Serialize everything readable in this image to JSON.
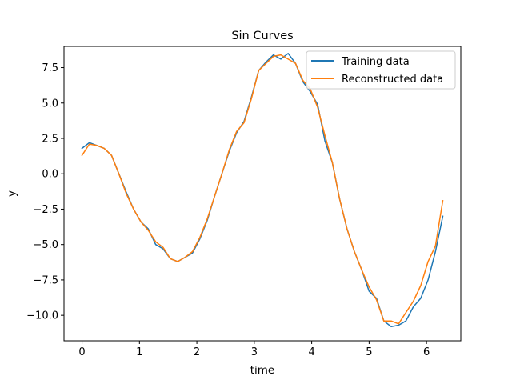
{
  "chart_data": {
    "type": "line",
    "title": "Sin Curves",
    "xlabel": "time",
    "ylabel": "y",
    "xlim": [
      -0.3142,
      6.5973
    ],
    "ylim": [
      -11.8,
      9.0
    ],
    "xticks": [
      0,
      1,
      2,
      3,
      4,
      5,
      6
    ],
    "xtick_labels": [
      "0",
      "1",
      "2",
      "3",
      "4",
      "5",
      "6"
    ],
    "yticks": [
      -10.0,
      -7.5,
      -5.0,
      -2.5,
      0.0,
      2.5,
      5.0,
      7.5
    ],
    "ytick_labels": [
      "−10.0",
      "−7.5",
      "−5.0",
      "−2.5",
      "0.0",
      "2.5",
      "5.0",
      "7.5"
    ],
    "grid": false,
    "legend_position": "top-right",
    "x": [
      0.0,
      0.1282,
      0.2565,
      0.3847,
      0.5129,
      0.6411,
      0.7694,
      0.8976,
      1.0258,
      1.1541,
      1.2823,
      1.4105,
      1.5387,
      1.667,
      1.7952,
      1.9234,
      2.0517,
      2.1799,
      2.3081,
      2.4363,
      2.5646,
      2.6928,
      2.821,
      2.9493,
      3.0775,
      3.2057,
      3.3339,
      3.4622,
      3.5904,
      3.7186,
      3.8468,
      3.9751,
      4.1033,
      4.2315,
      4.3598,
      4.488,
      4.6162,
      4.7444,
      4.8727,
      5.0009,
      5.1291,
      5.2574,
      5.3856,
      5.5138,
      5.642,
      5.7703,
      5.8985,
      6.0267,
      6.155,
      6.2832
    ],
    "series": [
      {
        "name": "Training data",
        "color": "#1f77b4",
        "values": [
          1.8,
          2.2,
          2.0,
          1.8,
          1.3,
          0.0,
          -1.3,
          -2.5,
          -3.4,
          -3.9,
          -5.0,
          -5.3,
          -6.0,
          -6.2,
          -5.9,
          -5.6,
          -4.6,
          -3.3,
          -1.6,
          0.0,
          1.6,
          2.9,
          3.7,
          5.4,
          7.3,
          7.9,
          8.4,
          8.1,
          8.5,
          7.8,
          6.5,
          5.8,
          4.9,
          2.3,
          0.8,
          -1.8,
          -3.9,
          -5.5,
          -6.8,
          -8.3,
          -8.8,
          -10.4,
          -10.8,
          -10.7,
          -10.4,
          -9.4,
          -8.8,
          -7.5,
          -5.5,
          -3.0
        ]
      },
      {
        "name": "Reconstructed data",
        "color": "#ff7f0e",
        "values": [
          1.3,
          2.1,
          2.0,
          1.8,
          1.3,
          0.0,
          -1.4,
          -2.5,
          -3.4,
          -4.0,
          -4.8,
          -5.2,
          -6.0,
          -6.2,
          -5.9,
          -5.5,
          -4.5,
          -3.2,
          -1.6,
          0.0,
          1.7,
          3.0,
          3.6,
          5.3,
          7.3,
          7.8,
          8.3,
          8.4,
          8.1,
          7.8,
          6.6,
          6.0,
          4.7,
          2.7,
          0.8,
          -1.8,
          -3.9,
          -5.5,
          -6.8,
          -8.0,
          -8.9,
          -10.4,
          -10.4,
          -10.6,
          -9.8,
          -9.0,
          -7.9,
          -6.2,
          -5.1,
          -1.9
        ]
      }
    ]
  }
}
